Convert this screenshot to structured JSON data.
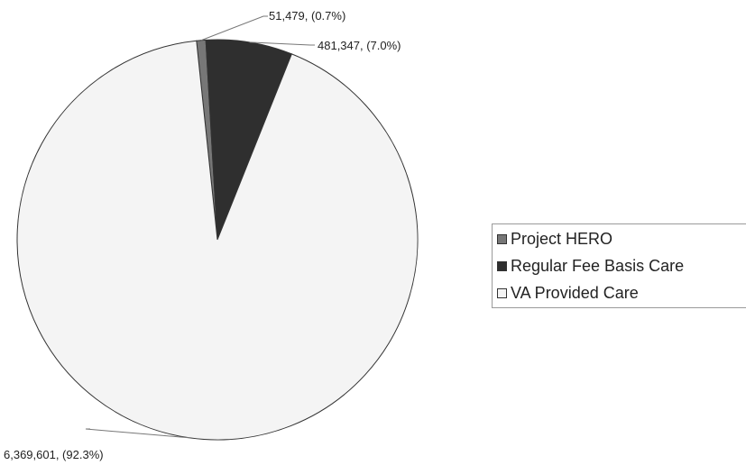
{
  "chart_data": {
    "type": "pie",
    "title": "",
    "slices": [
      {
        "name": "Project HERO",
        "value": 51479,
        "label": "51,479, (0.7%)",
        "color": "#777777"
      },
      {
        "name": "Regular Fee Basis Care",
        "value": 481347,
        "label": "481,347, (7.0%)",
        "color": "#2f2f2f"
      },
      {
        "name": "VA Provided Care",
        "value": 6369601,
        "label": "6,369,601, (92.3%)",
        "color": "#f4f4f4"
      }
    ],
    "legend_position": "right"
  }
}
